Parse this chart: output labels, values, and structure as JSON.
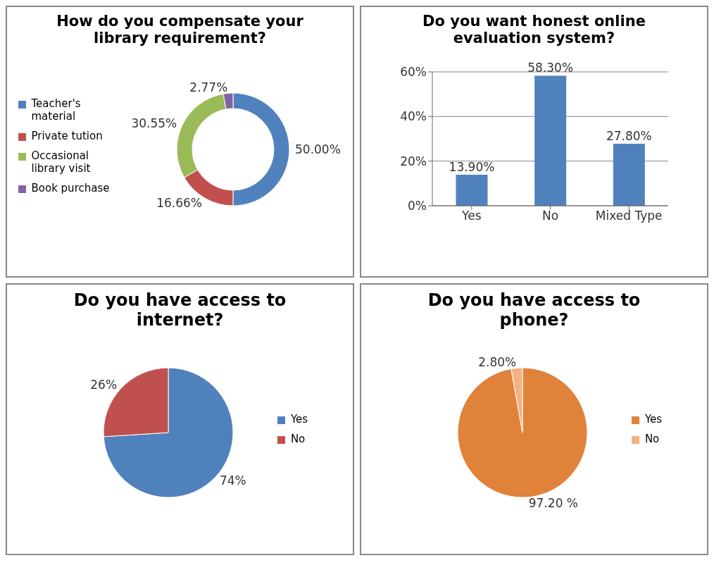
{
  "chart_data": [
    {
      "type": "donut",
      "title": "How do you compensate your library requirement?",
      "categories": [
        "Teacher's material",
        "Private tution",
        "Occasional library visit",
        "Book purchase"
      ],
      "values": [
        50.0,
        16.66,
        30.55,
        2.77
      ],
      "colors": [
        "#4f81bd",
        "#c0504d",
        "#9bbb59",
        "#8064a2"
      ],
      "value_labels": [
        "50.00%",
        "16.66%",
        "30.55%",
        "2.77%"
      ],
      "legend": "left"
    },
    {
      "type": "bar",
      "title": "Do you want honest online evaluation system?",
      "categories": [
        "Yes",
        "No",
        "Mixed Type"
      ],
      "values": [
        13.9,
        58.3,
        27.8
      ],
      "color": "#4f81bd",
      "value_labels": [
        "13.90%",
        "58.30%",
        "27.80%"
      ],
      "ylim": [
        0,
        60
      ],
      "yticks": [
        {
          "value": 0,
          "label": "0%"
        },
        {
          "value": 20,
          "label": "20%"
        },
        {
          "value": 40,
          "label": "40%"
        },
        {
          "value": 60,
          "label": "60%"
        }
      ],
      "grid": "y"
    },
    {
      "type": "pie",
      "title": "Do you have access to internet?",
      "categories": [
        "Yes",
        "No"
      ],
      "values": [
        74,
        26
      ],
      "colors": [
        "#4f81bd",
        "#c0504d"
      ],
      "value_labels": [
        "74%",
        "26%"
      ],
      "legend": "right"
    },
    {
      "type": "pie",
      "title": "Do you have access to phone?",
      "categories": [
        "Yes",
        "No"
      ],
      "values": [
        97.2,
        2.8
      ],
      "colors": [
        "#e0823a",
        "#f4b183"
      ],
      "value_labels": [
        "97.20 %",
        "2.80%"
      ],
      "legend": "right"
    }
  ]
}
